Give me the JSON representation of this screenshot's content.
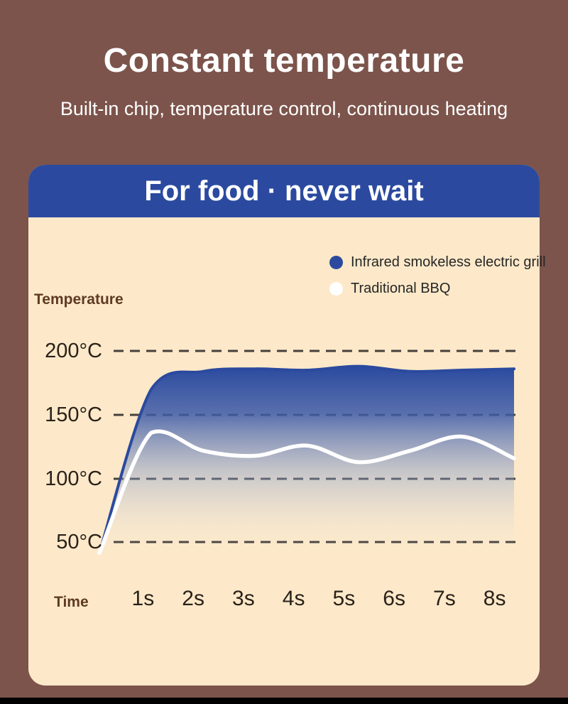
{
  "page": {
    "title": "Constant temperature",
    "subtitle": "Built-in chip, temperature control, continuous heating"
  },
  "card": {
    "header": "For food · never wait"
  },
  "chart_data": {
    "type": "area",
    "title": "",
    "xlabel": "Time",
    "ylabel": "Temperature",
    "x": [
      0,
      1,
      2,
      3,
      4,
      5,
      6,
      7,
      8
    ],
    "x_tick_labels": [
      "1s",
      "2s",
      "3s",
      "4s",
      "5s",
      "6s",
      "7s",
      "8s"
    ],
    "y_ticks": [
      200,
      150,
      100,
      50
    ],
    "y_tick_labels": [
      "200°C",
      "150°C",
      "100°C",
      "50°C"
    ],
    "ylim": [
      40,
      210
    ],
    "grid": "horizontal-dashed",
    "legend_position": "top-right",
    "series": [
      {
        "name": "Infrared smokeless electric grill",
        "color": "#2b4a9f",
        "fill": "gradient-fade-to-transparent",
        "values": [
          42,
          170,
          184,
          186,
          185,
          188,
          184,
          185,
          186
        ]
      },
      {
        "name": "Traditional BBQ",
        "color": "#ffffff",
        "fill": "none",
        "values": [
          42,
          136,
          122,
          118,
          126,
          113,
          122,
          133,
          116
        ]
      }
    ]
  },
  "colors": {
    "background": "#7c544b",
    "card_header": "#2b4a9f",
    "card_body": "#fde9c9",
    "infrared_curve": "#2b4a9f",
    "traditional_curve": "#ffffff",
    "grid_line": "#46403a",
    "axis_label_text": "#2a211a",
    "axis_title_text": "#5e3a24",
    "footer_bar": "#000000"
  }
}
